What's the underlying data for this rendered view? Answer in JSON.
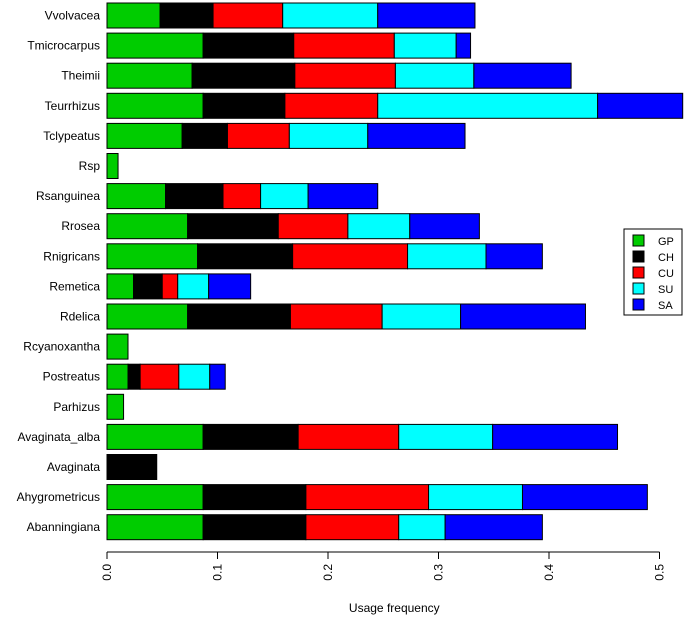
{
  "chart_data": {
    "type": "bar",
    "orientation": "horizontal",
    "stacked": true,
    "title": "",
    "xlabel": "Usage frequency",
    "ylabel": "",
    "xlim": [
      0,
      0.52
    ],
    "xticks": [
      "0.0",
      "0.1",
      "0.2",
      "0.3",
      "0.4",
      "0.5"
    ],
    "xtick_values": [
      0,
      0.1,
      0.2,
      0.3,
      0.4,
      0.5
    ],
    "legend_position": "right",
    "categories": [
      "Vvolvacea",
      "Tmicrocarpus",
      "Theimii",
      "Teurrhizus",
      "Tclypeatus",
      "Rsp",
      "Rsanguinea",
      "Rrosea",
      "Rnigricans",
      "Remetica",
      "Rdelica",
      "Rcyanoxantha",
      "Postreatus",
      "Parhizus",
      "Avaginata_alba",
      "Avaginata",
      "Ahygrometricus",
      "Abanningiana"
    ],
    "series": [
      {
        "name": "GP",
        "color": "#00cc00",
        "values": [
          0.048,
          0.087,
          0.077,
          0.087,
          0.068,
          0.01,
          0.053,
          0.073,
          0.082,
          0.024,
          0.073,
          0.019,
          0.019,
          0.015,
          0.087,
          0.0,
          0.087,
          0.087
        ]
      },
      {
        "name": "CH",
        "color": "#000000",
        "values": [
          0.048,
          0.082,
          0.093,
          0.074,
          0.041,
          0.0,
          0.052,
          0.082,
          0.086,
          0.026,
          0.093,
          0.0,
          0.011,
          0.0,
          0.086,
          0.045,
          0.093,
          0.093
        ]
      },
      {
        "name": "CU",
        "color": "#ff0000",
        "values": [
          0.063,
          0.091,
          0.091,
          0.084,
          0.056,
          0.0,
          0.034,
          0.063,
          0.104,
          0.014,
          0.083,
          0.0,
          0.035,
          0.0,
          0.091,
          0.0,
          0.111,
          0.084
        ]
      },
      {
        "name": "SU",
        "color": "#00ffff",
        "values": [
          0.086,
          0.056,
          0.071,
          0.199,
          0.071,
          0.0,
          0.043,
          0.056,
          0.071,
          0.028,
          0.071,
          0.0,
          0.028,
          0.0,
          0.085,
          0.0,
          0.085,
          0.042
        ]
      },
      {
        "name": "SA",
        "color": "#0000ff",
        "values": [
          0.088,
          0.013,
          0.088,
          0.077,
          0.088,
          0.0,
          0.063,
          0.063,
          0.051,
          0.038,
          0.113,
          0.0,
          0.014,
          0.0,
          0.113,
          0.0,
          0.113,
          0.088
        ]
      }
    ]
  }
}
